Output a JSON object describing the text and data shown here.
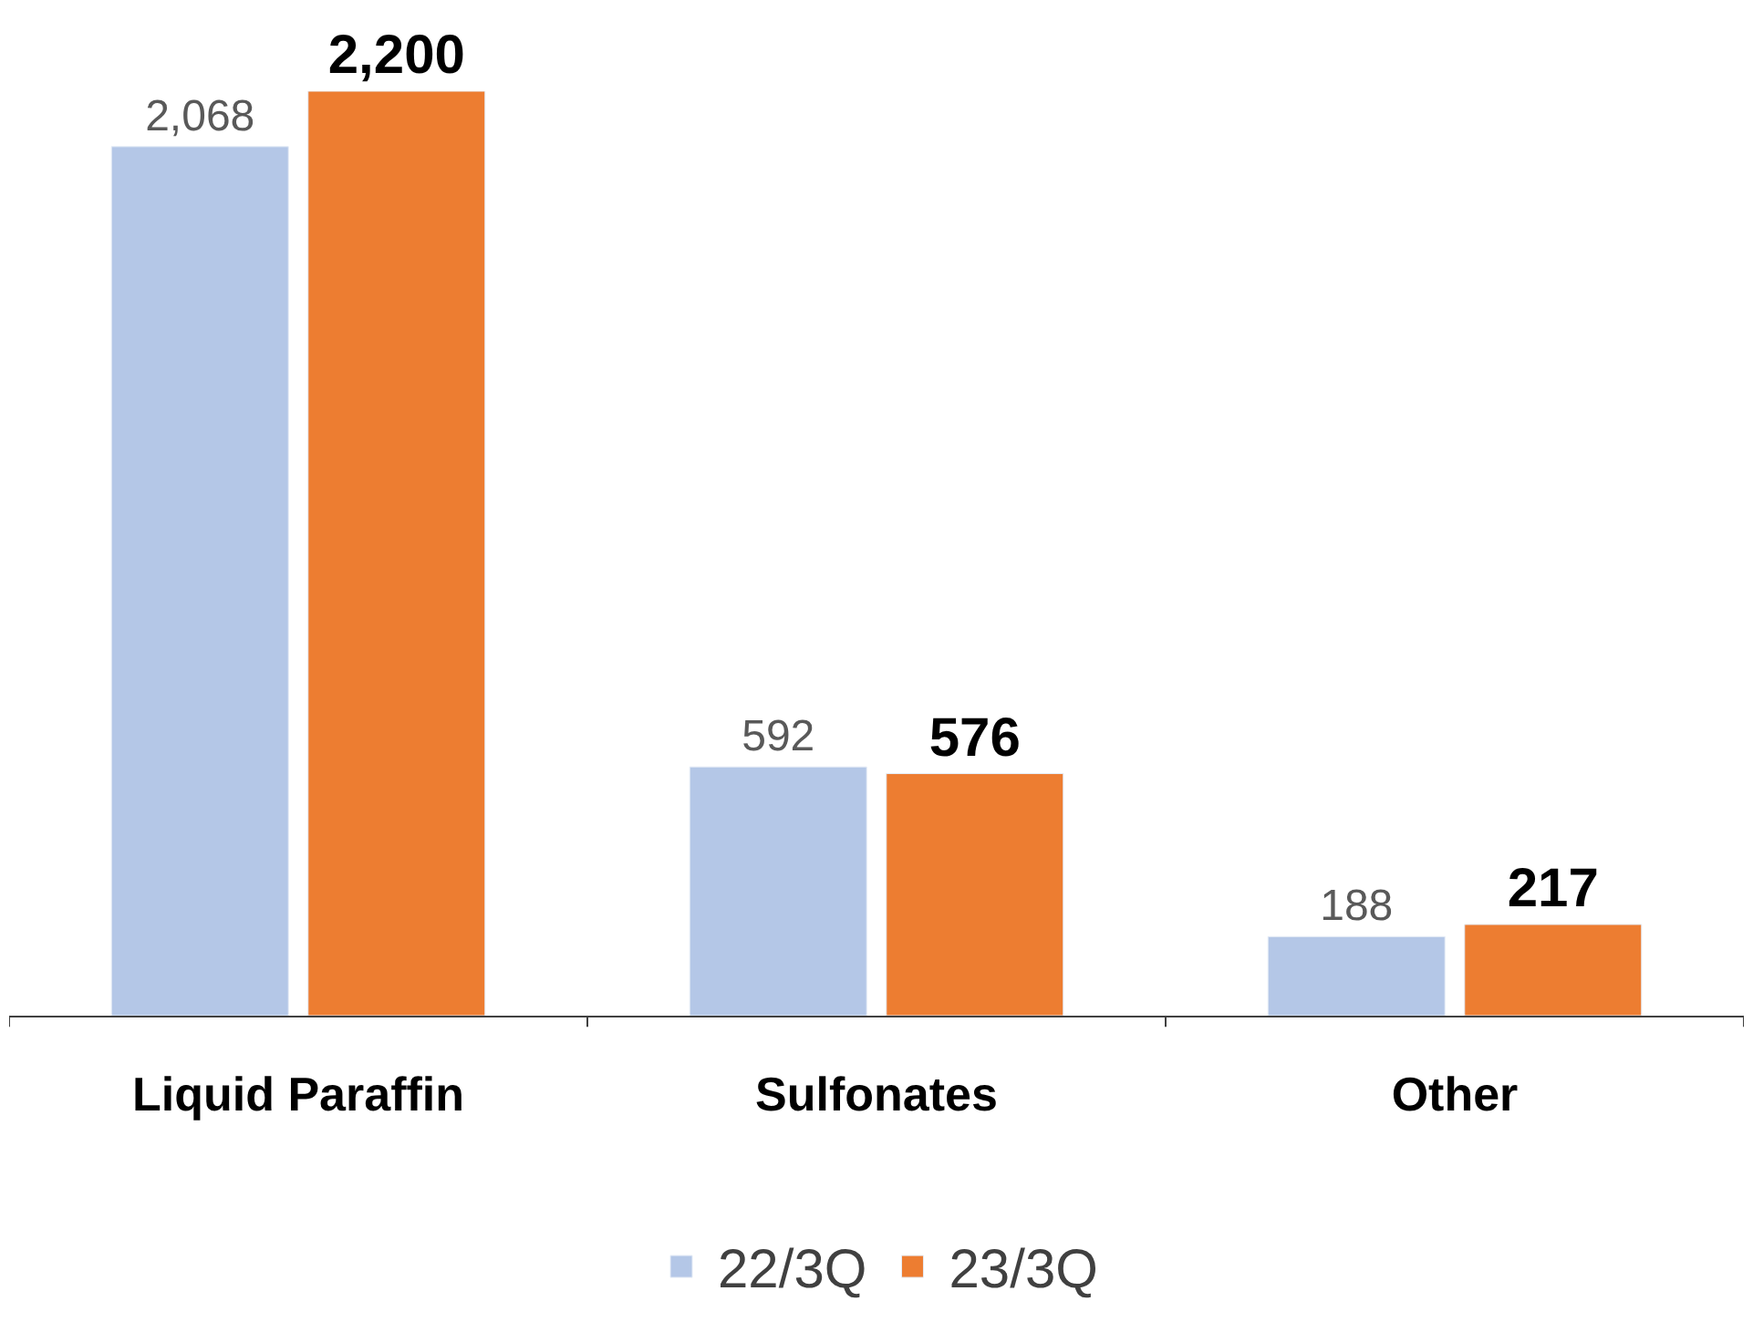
{
  "chart_data": {
    "type": "bar",
    "categories": [
      "Liquid Paraffin",
      "Sulfonates",
      "Other"
    ],
    "series": [
      {
        "name": "22/3Q",
        "color": "#b4c7e7",
        "values": [
          2068,
          592,
          188
        ],
        "value_labels": [
          "2,068",
          "592",
          "188"
        ]
      },
      {
        "name": "23/3Q",
        "color": "#ed7d31",
        "values": [
          2200,
          576,
          217
        ],
        "value_labels": [
          "2,200",
          "576",
          "217"
        ]
      }
    ],
    "ylim": [
      0,
      2200
    ],
    "legend": "bottom",
    "tick_labels": "x"
  }
}
